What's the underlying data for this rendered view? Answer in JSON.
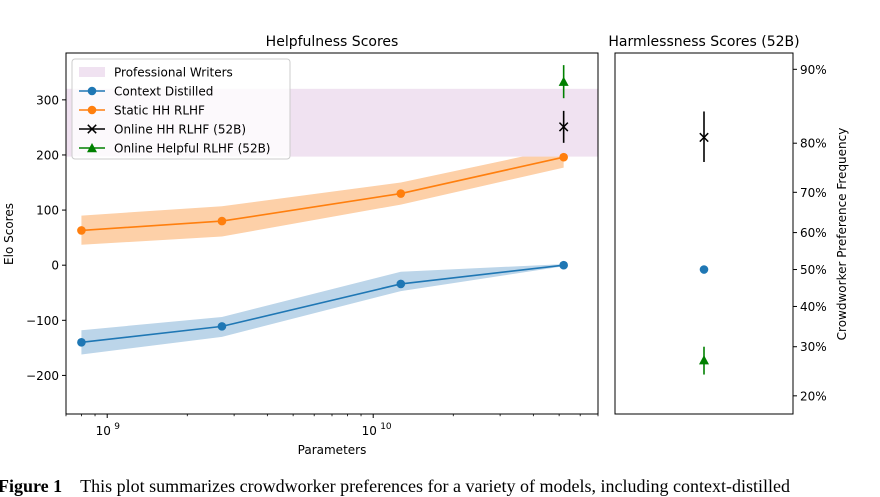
{
  "chart_data": [
    {
      "type": "line",
      "title": "Helpfulness Scores",
      "xlabel": "Parameters",
      "ylabel": "Elo Scores",
      "xscale": "log",
      "xlim": [
        700000000,
        70000000000
      ],
      "ylim": [
        -270,
        385
      ],
      "xticks": [
        {
          "value": 1000000000,
          "base": "10",
          "exp": "9"
        },
        {
          "value": 10000000000,
          "base": "10",
          "exp": "10"
        }
      ],
      "yticks": [
        {
          "value": -200,
          "label": "−200"
        },
        {
          "value": -100,
          "label": "−100"
        },
        {
          "value": 0,
          "label": "0"
        },
        {
          "value": 100,
          "label": "100"
        },
        {
          "value": 200,
          "label": "200"
        },
        {
          "value": 300,
          "label": "300"
        }
      ],
      "grid": false,
      "legend_position": "top-left",
      "band": {
        "name": "Professional Writers",
        "y0": 197,
        "y1": 320,
        "color": "#f0e2f1"
      },
      "series": [
        {
          "name": "Context Distilled",
          "color": "#1f77b4",
          "band_color": "#bcd5e9",
          "marker": "circle",
          "x": [
            800000000,
            2700000000,
            12700000000,
            52000000000
          ],
          "y": [
            -140,
            -111,
            -34,
            0
          ],
          "lower": [
            -162,
            -130,
            -47,
            -2
          ],
          "upper": [
            -118,
            -94,
            -12,
            2
          ]
        },
        {
          "name": "Static HH RLHF",
          "color": "#ff7f0e",
          "band_color": "#fdd0a8",
          "marker": "circle",
          "x": [
            800000000,
            2700000000,
            12700000000,
            52000000000
          ],
          "y": [
            63,
            80,
            130,
            196
          ],
          "lower": [
            37,
            52,
            110,
            177
          ],
          "upper": [
            90,
            107,
            150,
            213
          ]
        },
        {
          "name": "Online HH RLHF (52B)",
          "color": "#000000",
          "marker": "x",
          "x": [
            52000000000
          ],
          "y": [
            251
          ],
          "err_low": [
            222
          ],
          "err_high": [
            280
          ]
        },
        {
          "name": "Online Helpful RLHF (52B)",
          "color": "#008000",
          "marker": "triangle",
          "x": [
            52000000000
          ],
          "y": [
            333
          ],
          "err_low": [
            303
          ],
          "err_high": [
            363
          ]
        }
      ]
    },
    {
      "type": "scatter",
      "title": "Harmlessness Scores (52B)",
      "ylabel": "Crowdworker Preference Frequency",
      "yscale": "logit",
      "ylim": [
        0.17,
        0.915
      ],
      "yaxis_position": "right",
      "yticks": [
        {
          "value": 0.2,
          "label": "20%"
        },
        {
          "value": 0.3,
          "label": "30%"
        },
        {
          "value": 0.4,
          "label": "40%"
        },
        {
          "value": 0.5,
          "label": "50%"
        },
        {
          "value": 0.6,
          "label": "60%"
        },
        {
          "value": 0.7,
          "label": "70%"
        },
        {
          "value": 0.8,
          "label": "80%"
        },
        {
          "value": 0.9,
          "label": "90%"
        }
      ],
      "points": [
        {
          "series": "Online HH RLHF (52B)",
          "y": 0.81,
          "err_low": 0.765,
          "err_high": 0.85,
          "color": "#000000",
          "marker": "x"
        },
        {
          "series": "Context Distilled",
          "y": 0.5,
          "err_low": 0.5,
          "err_high": 0.5,
          "color": "#1f77b4",
          "marker": "circle"
        },
        {
          "series": "Online Helpful RLHF (52B)",
          "y": 0.27,
          "err_low": 0.24,
          "err_high": 0.3,
          "color": "#008000",
          "marker": "triangle"
        }
      ]
    }
  ],
  "caption": {
    "label": "Figure 1",
    "text": "This plot summarizes crowdworker preferences for a variety of models, including context-distilled"
  }
}
